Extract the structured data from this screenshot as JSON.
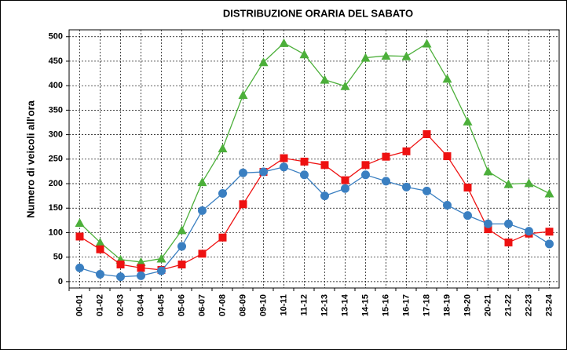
{
  "chart_data": {
    "type": "line",
    "title": "DISTRIBUZIONE ORARIA DEL SABATO",
    "y_label": "Numero di veicoli all'ora",
    "categories": [
      "00-01",
      "01-02",
      "02-03",
      "03-04",
      "04-05",
      "05-06",
      "06-07",
      "07-08",
      "08-09",
      "09-10",
      "10-11",
      "11-12",
      "12-13",
      "13-14",
      "14-15",
      "15-16",
      "16-17",
      "17-18",
      "18-19",
      "19-20",
      "20-21",
      "21-22",
      "22-23",
      "23-24"
    ],
    "series": [
      {
        "color": "#4caf3a",
        "marker": "triangle",
        "values": [
          120,
          80,
          45,
          40,
          47,
          105,
          203,
          272,
          381,
          448,
          487,
          464,
          412,
          399,
          457,
          461,
          460,
          486,
          414,
          327,
          225,
          199,
          201,
          180
        ]
      },
      {
        "color": "#ee1111",
        "marker": "square",
        "values": [
          92,
          66,
          35,
          28,
          24,
          35,
          57,
          90,
          158,
          224,
          252,
          245,
          238,
          207,
          238,
          255,
          266,
          301,
          256,
          192,
          107,
          80,
          98,
          102
        ]
      },
      {
        "color": "#3a7fc1",
        "marker": "circle",
        "values": [
          28,
          15,
          10,
          12,
          22,
          72,
          145,
          180,
          222,
          224,
          234,
          218,
          175,
          190,
          218,
          205,
          193,
          185,
          156,
          135,
          118,
          118,
          103,
          77
        ]
      }
    ],
    "ylim": [
      -13,
      514
    ],
    "yticks": [
      0,
      50,
      100,
      150,
      200,
      250,
      300,
      350,
      400,
      450,
      500
    ],
    "grid": true
  }
}
